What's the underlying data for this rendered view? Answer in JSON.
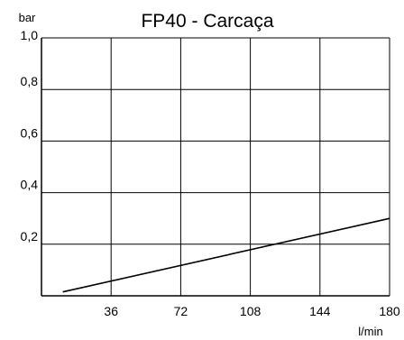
{
  "chart_data": {
    "type": "line",
    "title": "FP40 - Carcaça",
    "xlabel": "l/min",
    "ylabel": "bar",
    "xlim": [
      0,
      180
    ],
    "ylim": [
      0,
      1.0
    ],
    "x_ticks": [
      36,
      72,
      108,
      144,
      180
    ],
    "x_tick_labels": [
      "36",
      "72",
      "108",
      "144",
      "180"
    ],
    "y_ticks": [
      0.2,
      0.4,
      0.6,
      0.8,
      1.0
    ],
    "y_tick_labels": [
      "0,2",
      "0,4",
      "0,6",
      "0,8",
      "1,0"
    ],
    "grid": true,
    "series": [
      {
        "x": [
          11,
          180
        ],
        "y": [
          0.015,
          0.3
        ]
      }
    ]
  }
}
